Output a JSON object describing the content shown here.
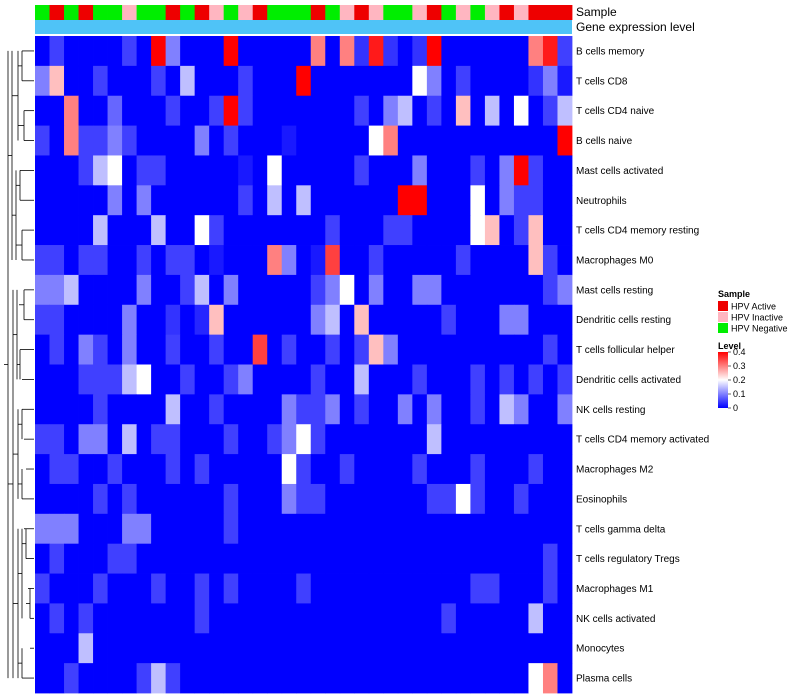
{
  "chart_data": {
    "type": "heatmap",
    "annotation_tracks": [
      "Sample",
      "Gene expression level"
    ],
    "samples_annotation": [
      "Negative",
      "Active",
      "Negative",
      "Active",
      "Negative",
      "Negative",
      "Inactive",
      "Negative",
      "Negative",
      "Active",
      "Negative",
      "Active",
      "Inactive",
      "Negative",
      "Inactive",
      "Active",
      "Negative",
      "Negative",
      "Negative",
      "Active",
      "Negative",
      "Inactive",
      "Active",
      "Inactive",
      "Negative",
      "Negative",
      "Inactive",
      "Active",
      "Negative",
      "Inactive",
      "Negative",
      "Inactive",
      "Active",
      "Inactive",
      "Active",
      "Active",
      "Active"
    ],
    "rows": [
      "B cells memory",
      "T cells CD8",
      "T cells CD4 naive",
      "B cells naive",
      "Mast cells activated",
      "Neutrophils",
      "T cells CD4 memory resting",
      "Macrophages M0",
      "Mast cells resting",
      "Dendritic cells resting",
      "T cells follicular helper",
      "Dendritic cells activated",
      "NK cells resting",
      "T cells CD4 memory activated",
      "Macrophages M2",
      "Eosinophils",
      "T cells gamma delta",
      "T cells regulatory  Tregs",
      "Macrophages M1",
      "NK cells activated",
      "Monocytes",
      "Plasma cells"
    ],
    "values": [
      [
        0,
        0.05,
        0,
        0,
        0,
        0,
        0.05,
        0,
        0.4,
        0.1,
        0,
        0,
        0,
        0.4,
        0,
        0,
        0,
        0,
        0,
        0.3,
        0,
        0.3,
        0.04,
        0.38,
        0.04,
        0,
        0.04,
        0.4,
        0,
        0,
        0,
        0,
        0,
        0,
        0.3,
        0.38,
        0.05
      ],
      [
        0.1,
        0.25,
        0,
        0,
        0.05,
        0,
        0,
        0,
        0.05,
        0,
        0.15,
        0,
        0,
        0,
        0.05,
        0,
        0,
        0,
        0.4,
        0,
        0,
        0,
        0,
        0,
        0,
        0,
        0.2,
        0.1,
        0,
        0.05,
        0,
        0,
        0,
        0,
        0.04,
        0.1,
        0.02
      ],
      [
        0,
        0,
        0.3,
        0,
        0,
        0.08,
        0,
        0,
        0,
        0.05,
        0,
        0,
        0.05,
        0.4,
        0.05,
        0,
        0,
        0,
        0,
        0,
        0,
        0,
        0.05,
        0,
        0.1,
        0.15,
        0,
        0.05,
        0,
        0.25,
        0,
        0.15,
        0,
        0.2,
        0,
        0.05,
        0.15
      ],
      [
        0.05,
        0,
        0.3,
        0.05,
        0.05,
        0.1,
        0.05,
        0,
        0,
        0,
        0,
        0.1,
        0,
        0.05,
        0,
        0,
        0,
        0.02,
        0,
        0,
        0,
        0,
        0,
        0.2,
        0.3,
        0,
        0,
        0,
        0,
        0,
        0,
        0,
        0,
        0,
        0,
        0,
        0.4
      ],
      [
        0,
        0,
        0,
        0.05,
        0.15,
        0.2,
        0,
        0.05,
        0.05,
        0,
        0,
        0,
        0,
        0,
        0.02,
        0,
        0.2,
        0,
        0,
        0,
        0,
        0,
        0.05,
        0,
        0,
        0,
        0.1,
        0,
        0,
        0,
        0.05,
        0,
        0.1,
        0.4,
        0.05,
        0,
        0
      ],
      [
        0,
        0,
        0,
        0,
        0,
        0.1,
        0,
        0.1,
        0,
        0,
        0,
        0,
        0,
        0,
        0.05,
        0,
        0.15,
        0,
        0.15,
        0,
        0,
        0,
        0,
        0,
        0,
        0.4,
        0.4,
        0,
        0,
        0,
        0.2,
        0,
        0.1,
        0.05,
        0.05,
        0,
        0
      ],
      [
        0,
        0,
        0,
        0,
        0.15,
        0,
        0,
        0,
        0.15,
        0,
        0,
        0.2,
        0.05,
        0,
        0,
        0,
        0,
        0,
        0,
        0,
        0.05,
        0,
        0,
        0,
        0.05,
        0.05,
        0,
        0,
        0,
        0,
        0.2,
        0.25,
        0,
        0.05,
        0.25,
        0,
        0
      ],
      [
        0.05,
        0.05,
        0,
        0.05,
        0.05,
        0,
        0,
        0.05,
        0,
        0.05,
        0.05,
        0,
        0.02,
        0,
        0,
        0,
        0.3,
        0.1,
        0,
        0.02,
        0.35,
        0,
        0,
        0.05,
        0,
        0,
        0,
        0,
        0,
        0.05,
        0,
        0,
        0,
        0,
        0.25,
        0.05,
        0
      ],
      [
        0.1,
        0.1,
        0.15,
        0,
        0,
        0,
        0,
        0.1,
        0,
        0,
        0.05,
        0.15,
        0,
        0.1,
        0,
        0,
        0,
        0,
        0,
        0.05,
        0.1,
        0.2,
        0,
        0.1,
        0,
        0,
        0.1,
        0.1,
        0,
        0,
        0,
        0,
        0,
        0,
        0,
        0.05,
        0.1
      ],
      [
        0.05,
        0.05,
        0,
        0,
        0,
        0,
        0.1,
        0,
        0,
        0.04,
        0,
        0.03,
        0.25,
        0,
        0,
        0,
        0,
        0,
        0,
        0.1,
        0.15,
        0,
        0.25,
        0,
        0,
        0,
        0,
        0,
        0.05,
        0,
        0,
        0,
        0.1,
        0.1,
        0,
        0,
        0
      ],
      [
        0,
        0.05,
        0,
        0.1,
        0.05,
        0,
        0.1,
        0,
        0,
        0.05,
        0,
        0,
        0.05,
        0,
        0,
        0.35,
        0,
        0.05,
        0,
        0,
        0.05,
        0,
        0.05,
        0.25,
        0.1,
        0,
        0,
        0,
        0,
        0,
        0,
        0,
        0,
        0,
        0,
        0.05,
        0
      ],
      [
        0,
        0,
        0,
        0.05,
        0.05,
        0.05,
        0.15,
        0.2,
        0,
        0,
        0.05,
        0,
        0,
        0.05,
        0.1,
        0,
        0,
        0,
        0,
        0.05,
        0,
        0,
        0.15,
        0,
        0,
        0,
        0.05,
        0,
        0,
        0,
        0.05,
        0,
        0.05,
        0,
        0.05,
        0,
        0.05
      ],
      [
        0,
        0,
        0,
        0,
        0.05,
        0,
        0,
        0,
        0,
        0.15,
        0,
        0,
        0.05,
        0,
        0,
        0,
        0,
        0.1,
        0.05,
        0.05,
        0.1,
        0,
        0.05,
        0,
        0,
        0.1,
        0,
        0.1,
        0,
        0,
        0.05,
        0,
        0.15,
        0.1,
        0,
        0,
        0.1
      ],
      [
        0.05,
        0.05,
        0,
        0.1,
        0.1,
        0,
        0.15,
        0,
        0.05,
        0.05,
        0,
        0,
        0,
        0.05,
        0,
        0,
        0.05,
        0.1,
        0.2,
        0.05,
        0,
        0,
        0,
        0,
        0,
        0,
        0,
        0.15,
        0,
        0,
        0,
        0,
        0,
        0,
        0,
        0,
        0
      ],
      [
        0,
        0.05,
        0.05,
        0,
        0,
        0.05,
        0,
        0,
        0,
        0.05,
        0,
        0.05,
        0,
        0,
        0,
        0,
        0,
        0.2,
        0.05,
        0,
        0,
        0.05,
        0,
        0,
        0,
        0,
        0.05,
        0,
        0,
        0,
        0.05,
        0,
        0,
        0,
        0.05,
        0,
        0
      ],
      [
        0,
        0,
        0,
        0,
        0.05,
        0,
        0.05,
        0,
        0,
        0,
        0,
        0,
        0,
        0.05,
        0,
        0,
        0,
        0.1,
        0.05,
        0.05,
        0,
        0,
        0,
        0,
        0,
        0,
        0,
        0.05,
        0.05,
        0.2,
        0.05,
        0,
        0,
        0.05,
        0,
        0,
        0
      ],
      [
        0.1,
        0.1,
        0.1,
        0,
        0,
        0,
        0.1,
        0.1,
        0,
        0,
        0,
        0,
        0,
        0.05,
        0,
        0,
        0,
        0,
        0,
        0,
        0,
        0,
        0,
        0,
        0,
        0,
        0,
        0,
        0,
        0,
        0,
        0,
        0,
        0,
        0,
        0,
        0
      ],
      [
        0,
        0.05,
        0,
        0,
        0,
        0.05,
        0.05,
        0,
        0,
        0,
        0,
        0,
        0,
        0,
        0,
        0,
        0,
        0,
        0,
        0,
        0,
        0,
        0,
        0,
        0,
        0,
        0,
        0,
        0,
        0,
        0,
        0,
        0,
        0,
        0,
        0.05,
        0
      ],
      [
        0.05,
        0,
        0,
        0,
        0.05,
        0,
        0,
        0,
        0.05,
        0,
        0,
        0.05,
        0,
        0.05,
        0,
        0,
        0,
        0,
        0.05,
        0,
        0,
        0,
        0,
        0,
        0,
        0,
        0,
        0,
        0,
        0,
        0.05,
        0.05,
        0,
        0,
        0,
        0.05,
        0
      ],
      [
        0,
        0.05,
        0,
        0.05,
        0,
        0,
        0,
        0,
        0,
        0,
        0,
        0.05,
        0,
        0,
        0,
        0,
        0,
        0,
        0,
        0,
        0,
        0,
        0,
        0,
        0,
        0,
        0,
        0,
        0.05,
        0,
        0,
        0,
        0,
        0,
        0.15,
        0,
        0
      ],
      [
        0,
        0,
        0,
        0.15,
        0,
        0,
        0,
        0,
        0,
        0,
        0,
        0,
        0,
        0,
        0,
        0,
        0,
        0,
        0,
        0,
        0,
        0,
        0,
        0,
        0,
        0,
        0,
        0,
        0,
        0,
        0,
        0,
        0,
        0,
        0,
        0,
        0
      ],
      [
        0,
        0,
        0.05,
        0,
        0,
        0,
        0,
        0.05,
        0.15,
        0.05,
        0,
        0,
        0,
        0,
        0,
        0,
        0,
        0,
        0,
        0,
        0,
        0,
        0,
        0,
        0,
        0,
        0,
        0,
        0,
        0,
        0,
        0,
        0,
        0,
        0.2,
        0.3,
        0
      ]
    ],
    "color_scale": {
      "min": 0,
      "max": 0.4,
      "colors": [
        "#0000ff",
        "#ffffff",
        "#ff0000"
      ]
    },
    "expression_track_color": "#4fc3f7",
    "sample_colors": {
      "Active": "#ee0000",
      "Inactive": "#ffb6c1",
      "Negative": "#00ee00"
    },
    "legend": {
      "sample_title": "Sample",
      "sample_items": [
        {
          "key": "Active",
          "label": "HPV Active"
        },
        {
          "key": "Inactive",
          "label": "HPV Inactive"
        },
        {
          "key": "Negative",
          "label": "HPV Negative"
        }
      ],
      "level_title": "Level",
      "level_ticks": [
        "0.4",
        "0.3",
        "0.2",
        "0.1",
        "0"
      ],
      "level_values": [
        0.4,
        0.3,
        0.2,
        0.1,
        0
      ]
    }
  }
}
